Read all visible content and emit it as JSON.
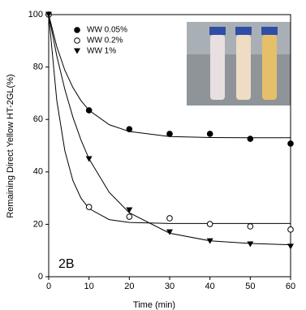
{
  "chart_data": {
    "type": "scatter",
    "x_label": "Time (min)",
    "y_label": "Remaining Direct Yellow HT-2GL(%)",
    "annotation": "2B",
    "x": [
      0,
      10,
      20,
      30,
      40,
      50,
      60
    ],
    "fit_x": [
      0,
      2,
      4,
      6,
      8,
      10,
      15,
      20,
      30,
      40,
      50,
      60
    ],
    "series": [
      {
        "name": "WW 0.05%",
        "color": "#000000",
        "marker": "filled-circle",
        "values": [
          100,
          63.5,
          56.3,
          54.5,
          54.5,
          52.6,
          50.8
        ],
        "fit": [
          100,
          87.8,
          78.8,
          72.2,
          67.2,
          63.5,
          58,
          55.4,
          53.5,
          53.1,
          53,
          53
        ]
      },
      {
        "name": "WW 0.2%",
        "color": "#000000",
        "marker": "open-circle",
        "values": [
          100,
          26.6,
          22.9,
          22.3,
          20.1,
          19.2,
          18
        ],
        "fit": [
          100,
          67.3,
          48.1,
          36.7,
          30,
          26,
          21.8,
          20.7,
          20.3,
          20.3,
          20.3,
          20.3
        ]
      },
      {
        "name": "WW 1%",
        "color": "#000000",
        "marker": "triangle-down",
        "values": [
          100,
          44.9,
          25.4,
          17,
          13.6,
          12.4,
          11.5
        ],
        "fit": [
          100,
          84.3,
          71.5,
          60.9,
          52.2,
          45,
          32.2,
          24.4,
          16.6,
          13.7,
          12.7,
          12.2
        ]
      }
    ],
    "xlim": [
      0,
      60
    ],
    "xticks": [
      0,
      10,
      20,
      30,
      40,
      50,
      60
    ],
    "ylim": [
      0,
      100
    ],
    "yticks": [
      0,
      20,
      40,
      60,
      80,
      100
    ],
    "legend": "upper-left",
    "grid": false
  }
}
